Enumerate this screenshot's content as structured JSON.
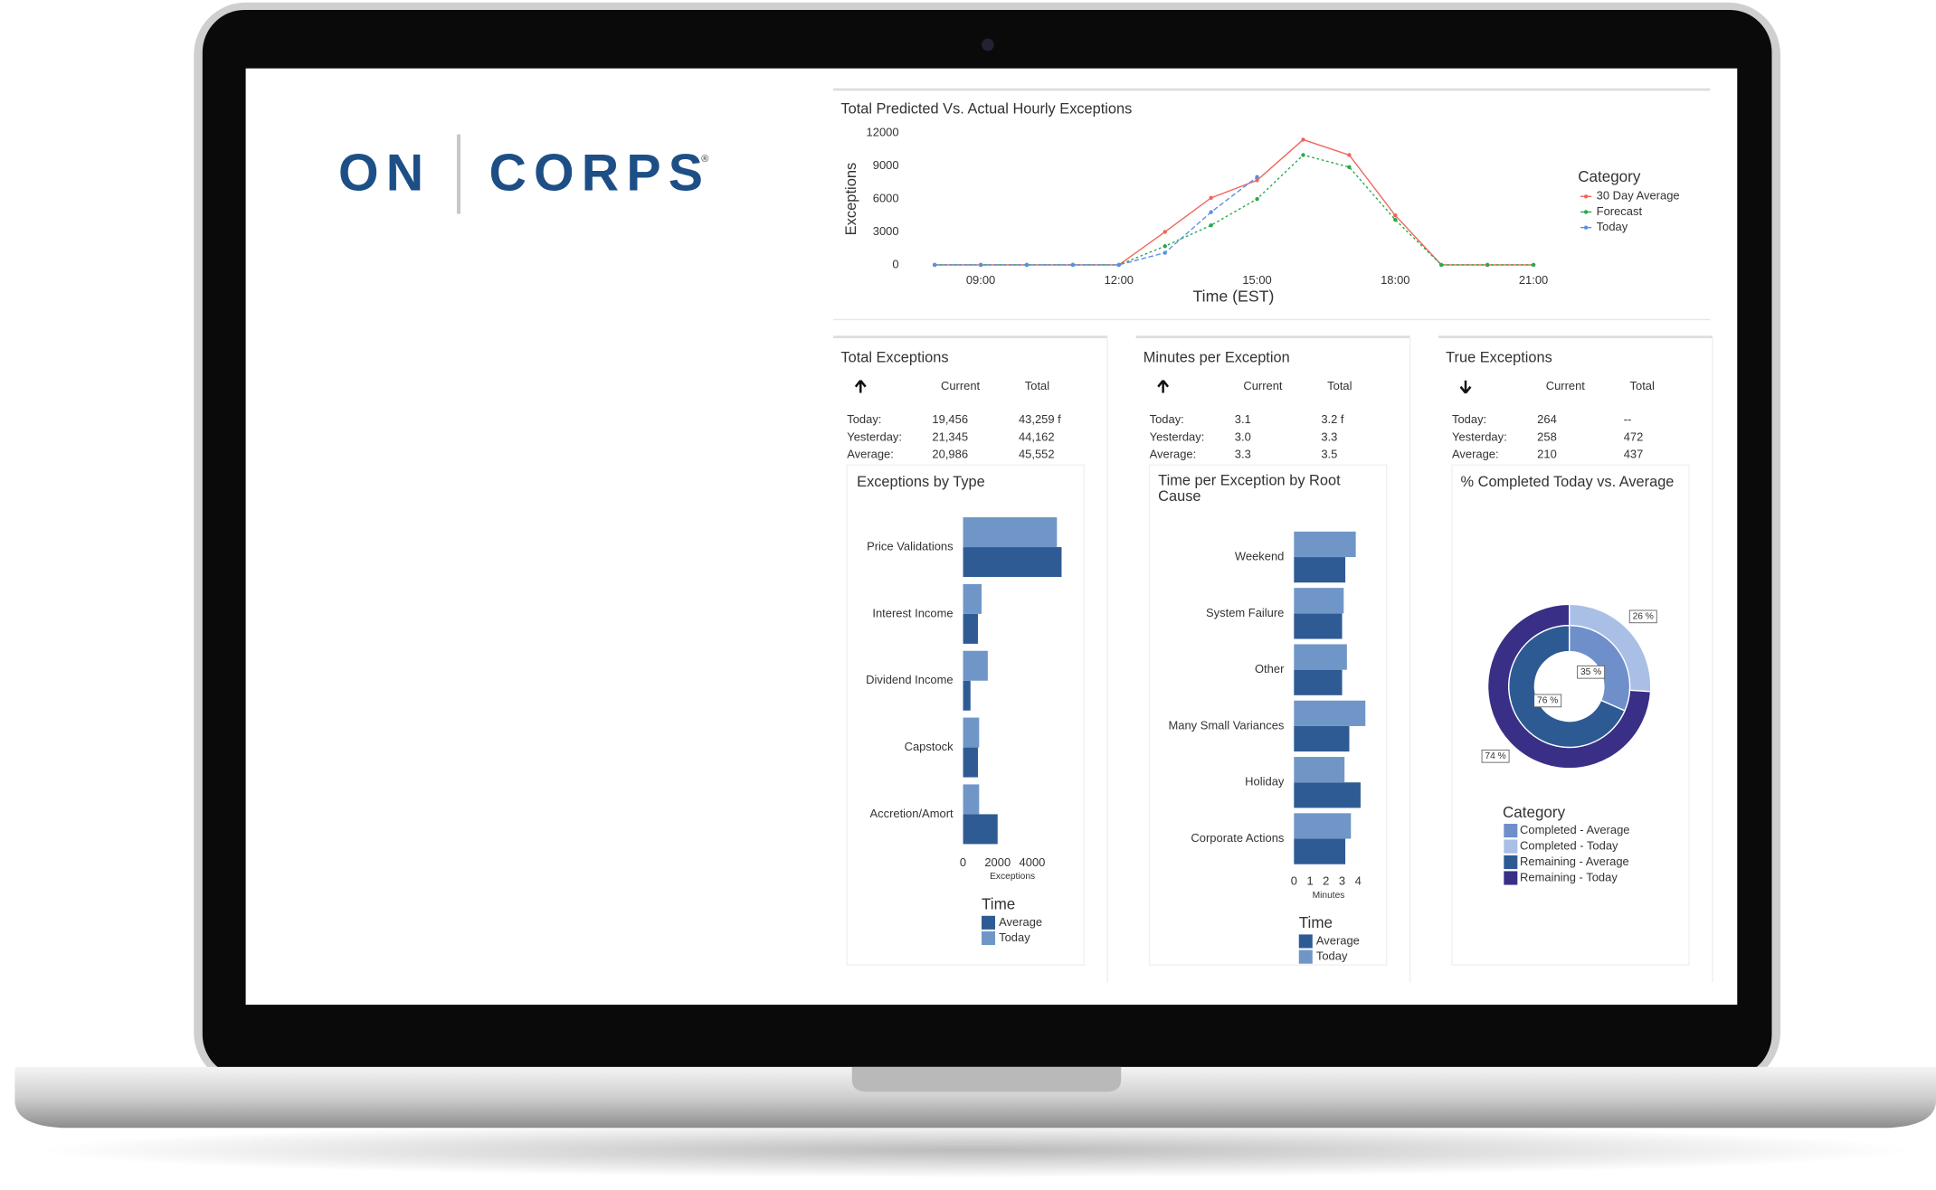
{
  "logo": {
    "left": "ON",
    "right": "CORPS",
    "mark": "®"
  },
  "chart_data": [
    {
      "type": "line",
      "title": "Total Predicted Vs. Actual Hourly Exceptions",
      "x_label": "Time (EST)",
      "y_label": "Exceptions",
      "x": [
        8,
        9,
        10,
        11,
        12,
        13,
        14,
        15,
        16,
        17,
        18,
        19,
        20,
        21
      ],
      "xlim": [
        8,
        21
      ],
      "xticks": [
        {
          "value": 9,
          "label": "09:00"
        },
        {
          "value": 12,
          "label": "12:00"
        },
        {
          "value": 15,
          "label": "15:00"
        },
        {
          "value": 18,
          "label": "18:00"
        },
        {
          "value": 21,
          "label": "21:00"
        }
      ],
      "ylim": [
        0,
        12000
      ],
      "yticks": [
        0,
        3000,
        6000,
        9000,
        12000
      ],
      "legend_title": "Category",
      "legend": "right",
      "series": [
        {
          "name": "30 Day Average",
          "color": "#f0645a",
          "values": [
            0,
            0,
            0,
            0,
            0,
            3000,
            6100,
            7700,
            11400,
            10000,
            4500,
            0,
            0,
            0
          ]
        },
        {
          "name": "Forecast",
          "color": "#2aa84a",
          "values": [
            0,
            0,
            0,
            0,
            0,
            1700,
            3600,
            6000,
            10000,
            8900,
            4100,
            0,
            0,
            0
          ]
        },
        {
          "name": "Today",
          "color": "#5b8fe0",
          "values": [
            0,
            0,
            0,
            0,
            0,
            1100,
            4800,
            8000,
            null,
            null,
            null,
            null,
            null,
            null
          ]
        }
      ]
    },
    {
      "type": "hbar",
      "title": "Exceptions by Type",
      "x_label": "Exceptions",
      "legend_title": "Time",
      "categories": [
        "Price Validations",
        "Interest Income",
        "Dividend Income",
        "Capstock",
        "Accretion/Amort"
      ],
      "xlim": [
        0,
        6000
      ],
      "xticks": [
        0,
        2000,
        4000
      ],
      "series": [
        {
          "name": "Average",
          "color": "#2f5b94",
          "values": [
            5700,
            860,
            430,
            860,
            2000
          ]
        },
        {
          "name": "Today",
          "color": "#7096c8",
          "values": [
            5430,
            1070,
            1430,
            930,
            930
          ]
        }
      ]
    },
    {
      "type": "hbar",
      "title": "Time per Exception by Root Cause",
      "x_label": "Minutes",
      "legend_title": "Time",
      "categories": [
        "Weekend",
        "System Failure",
        "Other",
        "Many Small Variances",
        "Holiday",
        "Corporate Actions"
      ],
      "xlim": [
        0,
        4
      ],
      "xticks": [
        0,
        1,
        2,
        3,
        4
      ],
      "series": [
        {
          "name": "Average",
          "color": "#2f5b94",
          "values": [
            3.2,
            3.0,
            3.0,
            3.45,
            4.15,
            3.2
          ]
        },
        {
          "name": "Today",
          "color": "#7096c8",
          "values": [
            3.85,
            3.1,
            3.3,
            4.45,
            3.15,
            3.55
          ]
        }
      ]
    },
    {
      "type": "donut",
      "title": "% Completed Today vs. Average",
      "legend_title": "Category",
      "categories": [
        "Completed - Average",
        "Completed - Today",
        "Remaining - Average",
        "Remaining - Today"
      ],
      "colors": [
        "#6f8fcb",
        "#a9bfe6",
        "#2e5a94",
        "#3a2f86"
      ],
      "rings": [
        "inner",
        "outer",
        "inner",
        "outer"
      ],
      "values": [
        35,
        26,
        76,
        74
      ],
      "value_labels": [
        "35 %",
        "26 %",
        "76 %",
        "74 %"
      ]
    }
  ],
  "panels": [
    {
      "title": "Total Exceptions",
      "trend": "up",
      "columns": [
        "Current",
        "Total"
      ],
      "rows": [
        [
          "Today:",
          "19,456",
          "43,259 f"
        ],
        [
          "Yesterday:",
          "21,345",
          "44,162"
        ],
        [
          "Average:",
          "20,986",
          "45,552"
        ]
      ]
    },
    {
      "title": "Minutes per Exception",
      "trend": "up",
      "columns": [
        "Current",
        "Total"
      ],
      "rows": [
        [
          "Today:",
          "3.1",
          "3.2 f"
        ],
        [
          "Yesterday:",
          "3.0",
          "3.3"
        ],
        [
          "Average:",
          "3.3",
          "3.5"
        ]
      ]
    },
    {
      "title": "True Exceptions",
      "trend": "down",
      "columns": [
        "Current",
        "Total"
      ],
      "rows": [
        [
          "Today:",
          "264",
          "--"
        ],
        [
          "Yesterday:",
          "258",
          "472"
        ],
        [
          "Average:",
          "210",
          "437"
        ]
      ]
    }
  ]
}
